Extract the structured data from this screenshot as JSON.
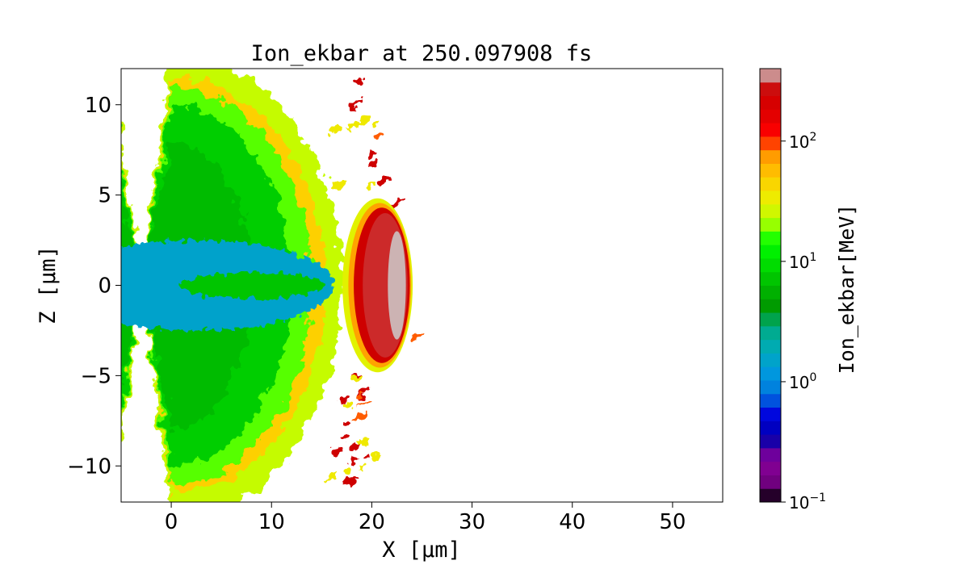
{
  "chart_data": {
    "type": "heatmap",
    "title": "Ion_ekbar at 250.097908 fs",
    "xlabel": "X [μm]",
    "ylabel": "Z [μm]",
    "xlim": [
      -5,
      55
    ],
    "ylim": [
      -12,
      12
    ],
    "xticks": [
      0,
      10,
      20,
      30,
      40,
      50
    ],
    "yticks": [
      -10,
      -5,
      0,
      5,
      10
    ],
    "xtick_labels": [
      "0",
      "10",
      "20",
      "30",
      "40",
      "50"
    ],
    "ytick_labels": [
      "−10",
      "−5",
      "0",
      "5",
      "10"
    ],
    "grid": false,
    "colorbar": {
      "label": "Ion_ekbar[MeV]",
      "scale": "log",
      "vmin": 0.1,
      "vmax": 400,
      "tick_values": [
        0.1,
        1,
        10,
        100
      ],
      "tick_bases": [
        "10",
        "10",
        "10",
        "10"
      ],
      "tick_exponents": [
        "−1",
        "0",
        "1",
        "2"
      ],
      "colormap": "nipy_spectral",
      "levels": 32
    },
    "regions": [
      {
        "name": "background",
        "value": 8,
        "x_range": [
          -5,
          14
        ],
        "z_range": [
          -12,
          12
        ]
      },
      {
        "name": "axial-channel",
        "value": 1.5,
        "x_range": [
          -5,
          16
        ],
        "z_range": [
          -2.5,
          2.5
        ]
      },
      {
        "name": "expanding-front",
        "value": 40,
        "x_range": [
          12,
          20
        ],
        "z_range": [
          -8,
          8
        ]
      },
      {
        "name": "ion-bunch",
        "value": 250,
        "center": [
          21,
          0
        ],
        "radius_x": 2.8,
        "radius_z": 4.3
      },
      {
        "name": "bunch-peak",
        "value": 380,
        "center": [
          22.5,
          0
        ],
        "radius_x": 0.9,
        "radius_z": 3.0
      }
    ]
  }
}
